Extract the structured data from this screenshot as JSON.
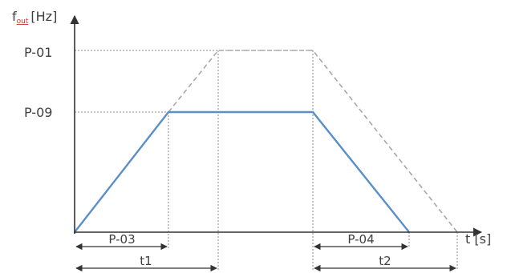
{
  "y_axis": {
    "symbol": "f",
    "subscript": "out",
    "unit": "[Hz]"
  },
  "x_axis": {
    "label": "t [s]"
  },
  "y_levels": {
    "upper": "P-01",
    "lower": "P-09"
  },
  "intervals": {
    "accel_ramp": "P-03",
    "accel_total": "t1",
    "decel_ramp": "P-04",
    "decel_total": "t2"
  },
  "colors": {
    "solid_line": "#5b8fc9",
    "dashed_line": "#a8a8a8",
    "axis": "#333333",
    "guide": "#888888",
    "text": "#404040",
    "subscript": "#c0392b"
  }
}
